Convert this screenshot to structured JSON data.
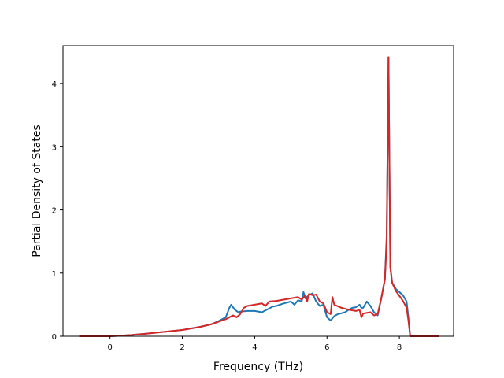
{
  "chart_data": {
    "type": "line",
    "title": "",
    "xlabel": "Frequency (THz)",
    "ylabel": "Partial Density of States",
    "xlim": [
      -1.3,
      9.5
    ],
    "ylim": [
      0,
      4.6
    ],
    "xticks": [
      0,
      2,
      4,
      6,
      8
    ],
    "yticks": [
      0,
      1,
      2,
      3,
      4
    ],
    "grid": false,
    "legend": "none",
    "series": [
      {
        "color": "#1f77b4",
        "x": [
          -0.85,
          -0.5,
          0.0,
          0.3,
          0.6,
          1.0,
          1.5,
          2.0,
          2.5,
          2.8,
          3.0,
          3.2,
          3.3,
          3.35,
          3.45,
          3.55,
          3.6,
          3.8,
          4.0,
          4.2,
          4.4,
          4.5,
          4.6,
          4.8,
          5.0,
          5.1,
          5.2,
          5.3,
          5.35,
          5.4,
          5.5,
          5.6,
          5.7,
          5.8,
          5.9,
          6.0,
          6.1,
          6.2,
          6.3,
          6.5,
          6.6,
          6.7,
          6.8,
          6.9,
          6.95,
          7.0,
          7.1,
          7.2,
          7.3,
          7.4,
          7.5,
          7.6,
          7.65,
          7.7,
          7.75,
          7.8,
          7.9,
          8.0,
          8.1,
          8.2,
          8.25,
          8.3,
          8.5,
          8.8,
          9.1
        ],
        "y": [
          0,
          0,
          0,
          0.01,
          0.02,
          0.04,
          0.07,
          0.1,
          0.15,
          0.19,
          0.24,
          0.3,
          0.45,
          0.5,
          0.42,
          0.38,
          0.39,
          0.4,
          0.4,
          0.38,
          0.44,
          0.47,
          0.48,
          0.52,
          0.55,
          0.5,
          0.57,
          0.55,
          0.7,
          0.6,
          0.65,
          0.68,
          0.55,
          0.48,
          0.5,
          0.3,
          0.25,
          0.32,
          0.35,
          0.38,
          0.42,
          0.45,
          0.46,
          0.5,
          0.45,
          0.45,
          0.55,
          0.48,
          0.38,
          0.33,
          0.6,
          0.9,
          1.6,
          4.42,
          1.1,
          0.85,
          0.75,
          0.7,
          0.65,
          0.55,
          0.3,
          0.0,
          0,
          0,
          0
        ]
      },
      {
        "color": "#d62728",
        "x": [
          -0.85,
          -0.5,
          0.0,
          0.3,
          0.6,
          1.0,
          1.5,
          2.0,
          2.5,
          2.8,
          3.0,
          3.2,
          3.3,
          3.4,
          3.5,
          3.6,
          3.7,
          3.8,
          4.0,
          4.2,
          4.3,
          4.4,
          4.6,
          4.8,
          5.0,
          5.2,
          5.3,
          5.4,
          5.45,
          5.5,
          5.6,
          5.7,
          5.8,
          5.9,
          6.0,
          6.1,
          6.15,
          6.2,
          6.4,
          6.6,
          6.8,
          6.9,
          6.95,
          7.0,
          7.2,
          7.3,
          7.4,
          7.5,
          7.6,
          7.65,
          7.7,
          7.75,
          7.8,
          7.9,
          8.0,
          8.1,
          8.2,
          8.25,
          8.3,
          8.5,
          8.8,
          9.1
        ],
        "y": [
          0,
          0,
          0,
          0.01,
          0.02,
          0.04,
          0.07,
          0.1,
          0.15,
          0.19,
          0.23,
          0.27,
          0.3,
          0.33,
          0.3,
          0.35,
          0.45,
          0.48,
          0.5,
          0.52,
          0.48,
          0.55,
          0.56,
          0.58,
          0.6,
          0.62,
          0.58,
          0.65,
          0.55,
          0.67,
          0.65,
          0.66,
          0.55,
          0.52,
          0.38,
          0.35,
          0.62,
          0.5,
          0.45,
          0.42,
          0.4,
          0.42,
          0.3,
          0.36,
          0.38,
          0.33,
          0.35,
          0.6,
          0.9,
          1.5,
          4.42,
          1.1,
          0.85,
          0.72,
          0.64,
          0.56,
          0.45,
          0.25,
          0.0,
          0,
          0,
          0
        ]
      }
    ]
  }
}
